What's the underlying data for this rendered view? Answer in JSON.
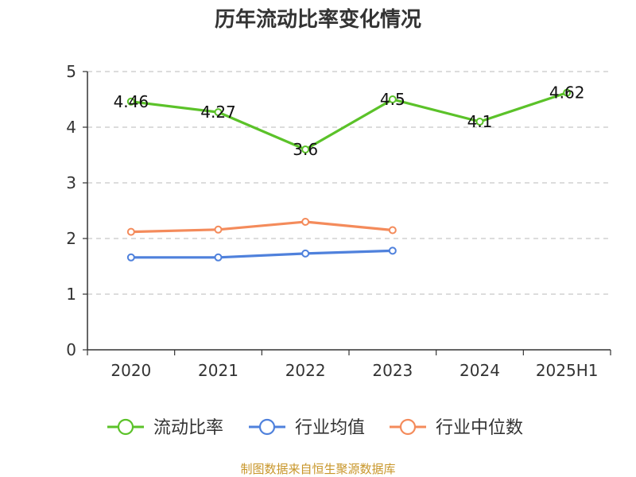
{
  "chart_data": {
    "type": "line",
    "title": "历年流动比率变化情况",
    "categories": [
      "2020",
      "2021",
      "2022",
      "2023",
      "2024",
      "2025H1"
    ],
    "ylim": [
      0,
      5
    ],
    "yticks": [
      "0",
      "1",
      "2",
      "3",
      "4",
      "5"
    ],
    "grid": true,
    "legend_position": "bottom",
    "series": [
      {
        "name": "流动比率",
        "color": "#5bc229",
        "values": [
          4.46,
          4.27,
          3.6,
          4.5,
          4.1,
          4.62
        ],
        "labels": [
          "4.46",
          "4.27",
          "3.6",
          "4.5",
          "4.1",
          "4.62"
        ]
      },
      {
        "name": "行业均值",
        "color": "#4f81dc",
        "values": [
          1.66,
          1.66,
          1.73,
          1.78,
          null,
          null
        ]
      },
      {
        "name": "行业中位数",
        "color": "#f48b5b",
        "values": [
          2.12,
          2.16,
          2.3,
          2.15,
          null,
          null
        ]
      }
    ],
    "source": "制图数据来自恒生聚源数据库"
  }
}
